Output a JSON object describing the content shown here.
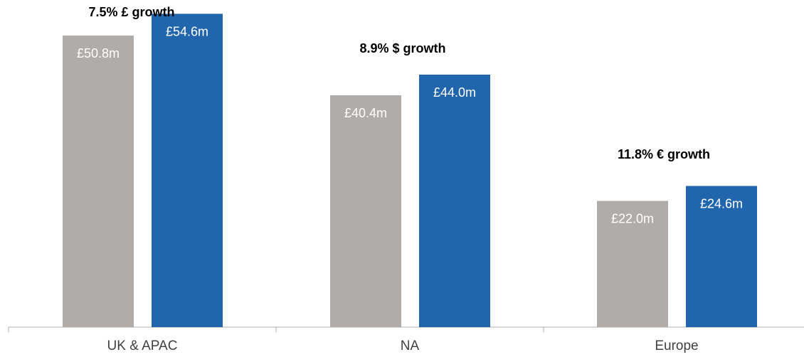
{
  "chart_data": {
    "type": "bar",
    "categories": [
      "UK & APAC",
      "NA",
      "Europe"
    ],
    "series": [
      {
        "values": [
          50.8,
          40.4,
          22.0
        ],
        "labels": [
          "£50.8m",
          "£40.4m",
          "£22.0m"
        ],
        "color": "#B0ACAA"
      },
      {
        "values": [
          54.6,
          44.0,
          24.6
        ],
        "labels": [
          "£54.6m",
          "£44.0m",
          "£24.6m"
        ],
        "color": "#2166AC"
      }
    ],
    "annotations": [
      "7.5% £ growth",
      "8.9% $ growth",
      "11.8% € growth"
    ],
    "ylim": [
      0,
      57
    ],
    "axis_color": "#BFBFBF",
    "grid": false,
    "legend": "none"
  }
}
